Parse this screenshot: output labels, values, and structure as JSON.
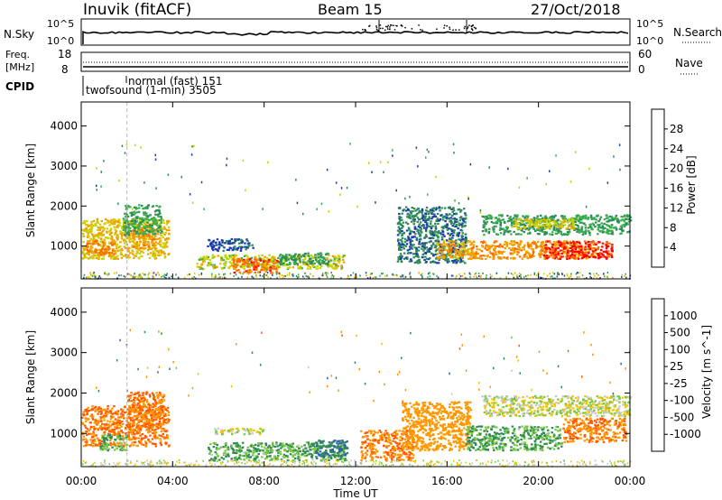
{
  "header": {
    "station": "Inuvik (fitACF)",
    "beam": "Beam 15",
    "date": "27/Oct/2018"
  },
  "noise_panel": {
    "left_label": "N.Sky",
    "right_label": "N.Search",
    "left_ticks": [
      "10^5",
      "10^0"
    ],
    "right_ticks": [
      "10^5",
      "10^0"
    ]
  },
  "freq_panel": {
    "left_label_line1": "Freq.",
    "left_label_line2": "[MHz]",
    "right_label": "Nave",
    "left_ticks": [
      "18",
      "8"
    ],
    "right_ticks": [
      "60",
      "0"
    ]
  },
  "cpid_panel": {
    "label": "CPID",
    "modes": [
      {
        "name": "normal (fast) 151",
        "start_hour": 2.0
      },
      {
        "name": "twofsound (1-min) 3505",
        "start_hour": 0.1
      }
    ]
  },
  "time_axis": {
    "label": "Time UT",
    "ticks": [
      "00:00",
      "04:00",
      "08:00",
      "12:00",
      "16:00",
      "20:00",
      "00:00"
    ],
    "tick_hours": [
      0,
      4,
      8,
      12,
      16,
      20,
      24
    ]
  },
  "range_axis": {
    "label": "Slant Range [km]",
    "ticks": [
      "1000",
      "2000",
      "3000",
      "4000"
    ],
    "tick_values": [
      1000,
      2000,
      3000,
      4000
    ],
    "min_km": 180,
    "max_km": 4600
  },
  "colors": {
    "power": [
      "#0000ff",
      "#1c3fa8",
      "#2e8b57",
      "#3cb04e",
      "#c8d400",
      "#f0a000",
      "#ff6a00",
      "#ff0000"
    ],
    "velocity": [
      "#1a2db4",
      "#2e5fbf",
      "#2f8a57",
      "#7ac943",
      "#c8c8c8",
      "#f3c400",
      "#ff9800",
      "#ff5a00",
      "#ff0000"
    ]
  },
  "chart_data": [
    {
      "type": "heatmap",
      "title": "",
      "xlabel": "Time UT",
      "ylabel": "Slant Range [km]",
      "x_range_hours": [
        0,
        24
      ],
      "ylim": [
        180,
        4600
      ],
      "colorbar": {
        "label": "Power [dB]",
        "ticks": [
          "4",
          "8",
          "12",
          "16",
          "20",
          "24",
          "28"
        ],
        "range": [
          0,
          32
        ]
      },
      "regions": [
        {
          "t0": 0.0,
          "t1": 3.8,
          "r0": 700,
          "r1": 1700,
          "value": 20
        },
        {
          "t0": 0.2,
          "t1": 1.4,
          "r0": 800,
          "r1": 1150,
          "value": 25
        },
        {
          "t0": 2.2,
          "t1": 3.2,
          "r0": 950,
          "r1": 1500,
          "value": 23
        },
        {
          "t0": 1.8,
          "t1": 3.5,
          "r0": 1300,
          "r1": 2050,
          "value": 13
        },
        {
          "t0": 5.0,
          "t1": 11.5,
          "r0": 450,
          "r1": 800,
          "value": 18
        },
        {
          "t0": 6.6,
          "t1": 8.6,
          "r0": 350,
          "r1": 700,
          "value": 26
        },
        {
          "t0": 5.5,
          "t1": 7.5,
          "r0": 900,
          "r1": 1200,
          "value": 7
        },
        {
          "t0": 8.6,
          "t1": 10.8,
          "r0": 550,
          "r1": 850,
          "value": 11
        },
        {
          "t0": 13.8,
          "t1": 16.8,
          "r0": 600,
          "r1": 2000,
          "value": 9
        },
        {
          "t0": 15.5,
          "t1": 17.2,
          "r0": 700,
          "r1": 1150,
          "value": 22
        },
        {
          "t0": 17.0,
          "t1": 22.5,
          "r0": 700,
          "r1": 1150,
          "value": 23
        },
        {
          "t0": 17.5,
          "t1": 24.0,
          "r0": 1300,
          "r1": 1800,
          "value": 12
        },
        {
          "t0": 18.8,
          "t1": 21.5,
          "r0": 1450,
          "r1": 1700,
          "value": 19
        },
        {
          "t0": 20.2,
          "t1": 23.2,
          "r0": 700,
          "r1": 1150,
          "value": 29
        }
      ]
    },
    {
      "type": "heatmap",
      "title": "",
      "xlabel": "Time UT",
      "ylabel": "Slant Range [km]",
      "x_range_hours": [
        0,
        24
      ],
      "ylim": [
        180,
        4600
      ],
      "colorbar": {
        "label": "Velocity [m s^-1]",
        "ticks": [
          "1000",
          "500",
          "100",
          "25",
          "-25",
          "-100",
          "-500",
          "-1000"
        ]
      },
      "regions": [
        {
          "t0": 0.0,
          "t1": 3.8,
          "r0": 700,
          "r1": 1700,
          "value": -500
        },
        {
          "t0": 0.8,
          "t1": 2.0,
          "r0": 600,
          "r1": 1000,
          "value": 100
        },
        {
          "t0": 2.0,
          "t1": 3.6,
          "r0": 1100,
          "r1": 2050,
          "value": -500
        },
        {
          "t0": 5.5,
          "t1": 11.5,
          "r0": 350,
          "r1": 800,
          "value": 100
        },
        {
          "t0": 10.2,
          "t1": 11.6,
          "r0": 450,
          "r1": 850,
          "value": 500
        },
        {
          "t0": 5.8,
          "t1": 8.0,
          "r0": 1000,
          "r1": 1150,
          "value": 0
        },
        {
          "t0": 12.2,
          "t1": 14.5,
          "r0": 350,
          "r1": 1100,
          "value": -500
        },
        {
          "t0": 14.0,
          "t1": 17.0,
          "r0": 600,
          "r1": 1800,
          "value": -300
        },
        {
          "t0": 16.8,
          "t1": 21.0,
          "r0": 600,
          "r1": 1200,
          "value": 100
        },
        {
          "t0": 17.5,
          "t1": 24.0,
          "r0": 1450,
          "r1": 1950,
          "value": 0
        },
        {
          "t0": 21.0,
          "t1": 23.8,
          "r0": 800,
          "r1": 1400,
          "value": -500
        }
      ]
    }
  ]
}
